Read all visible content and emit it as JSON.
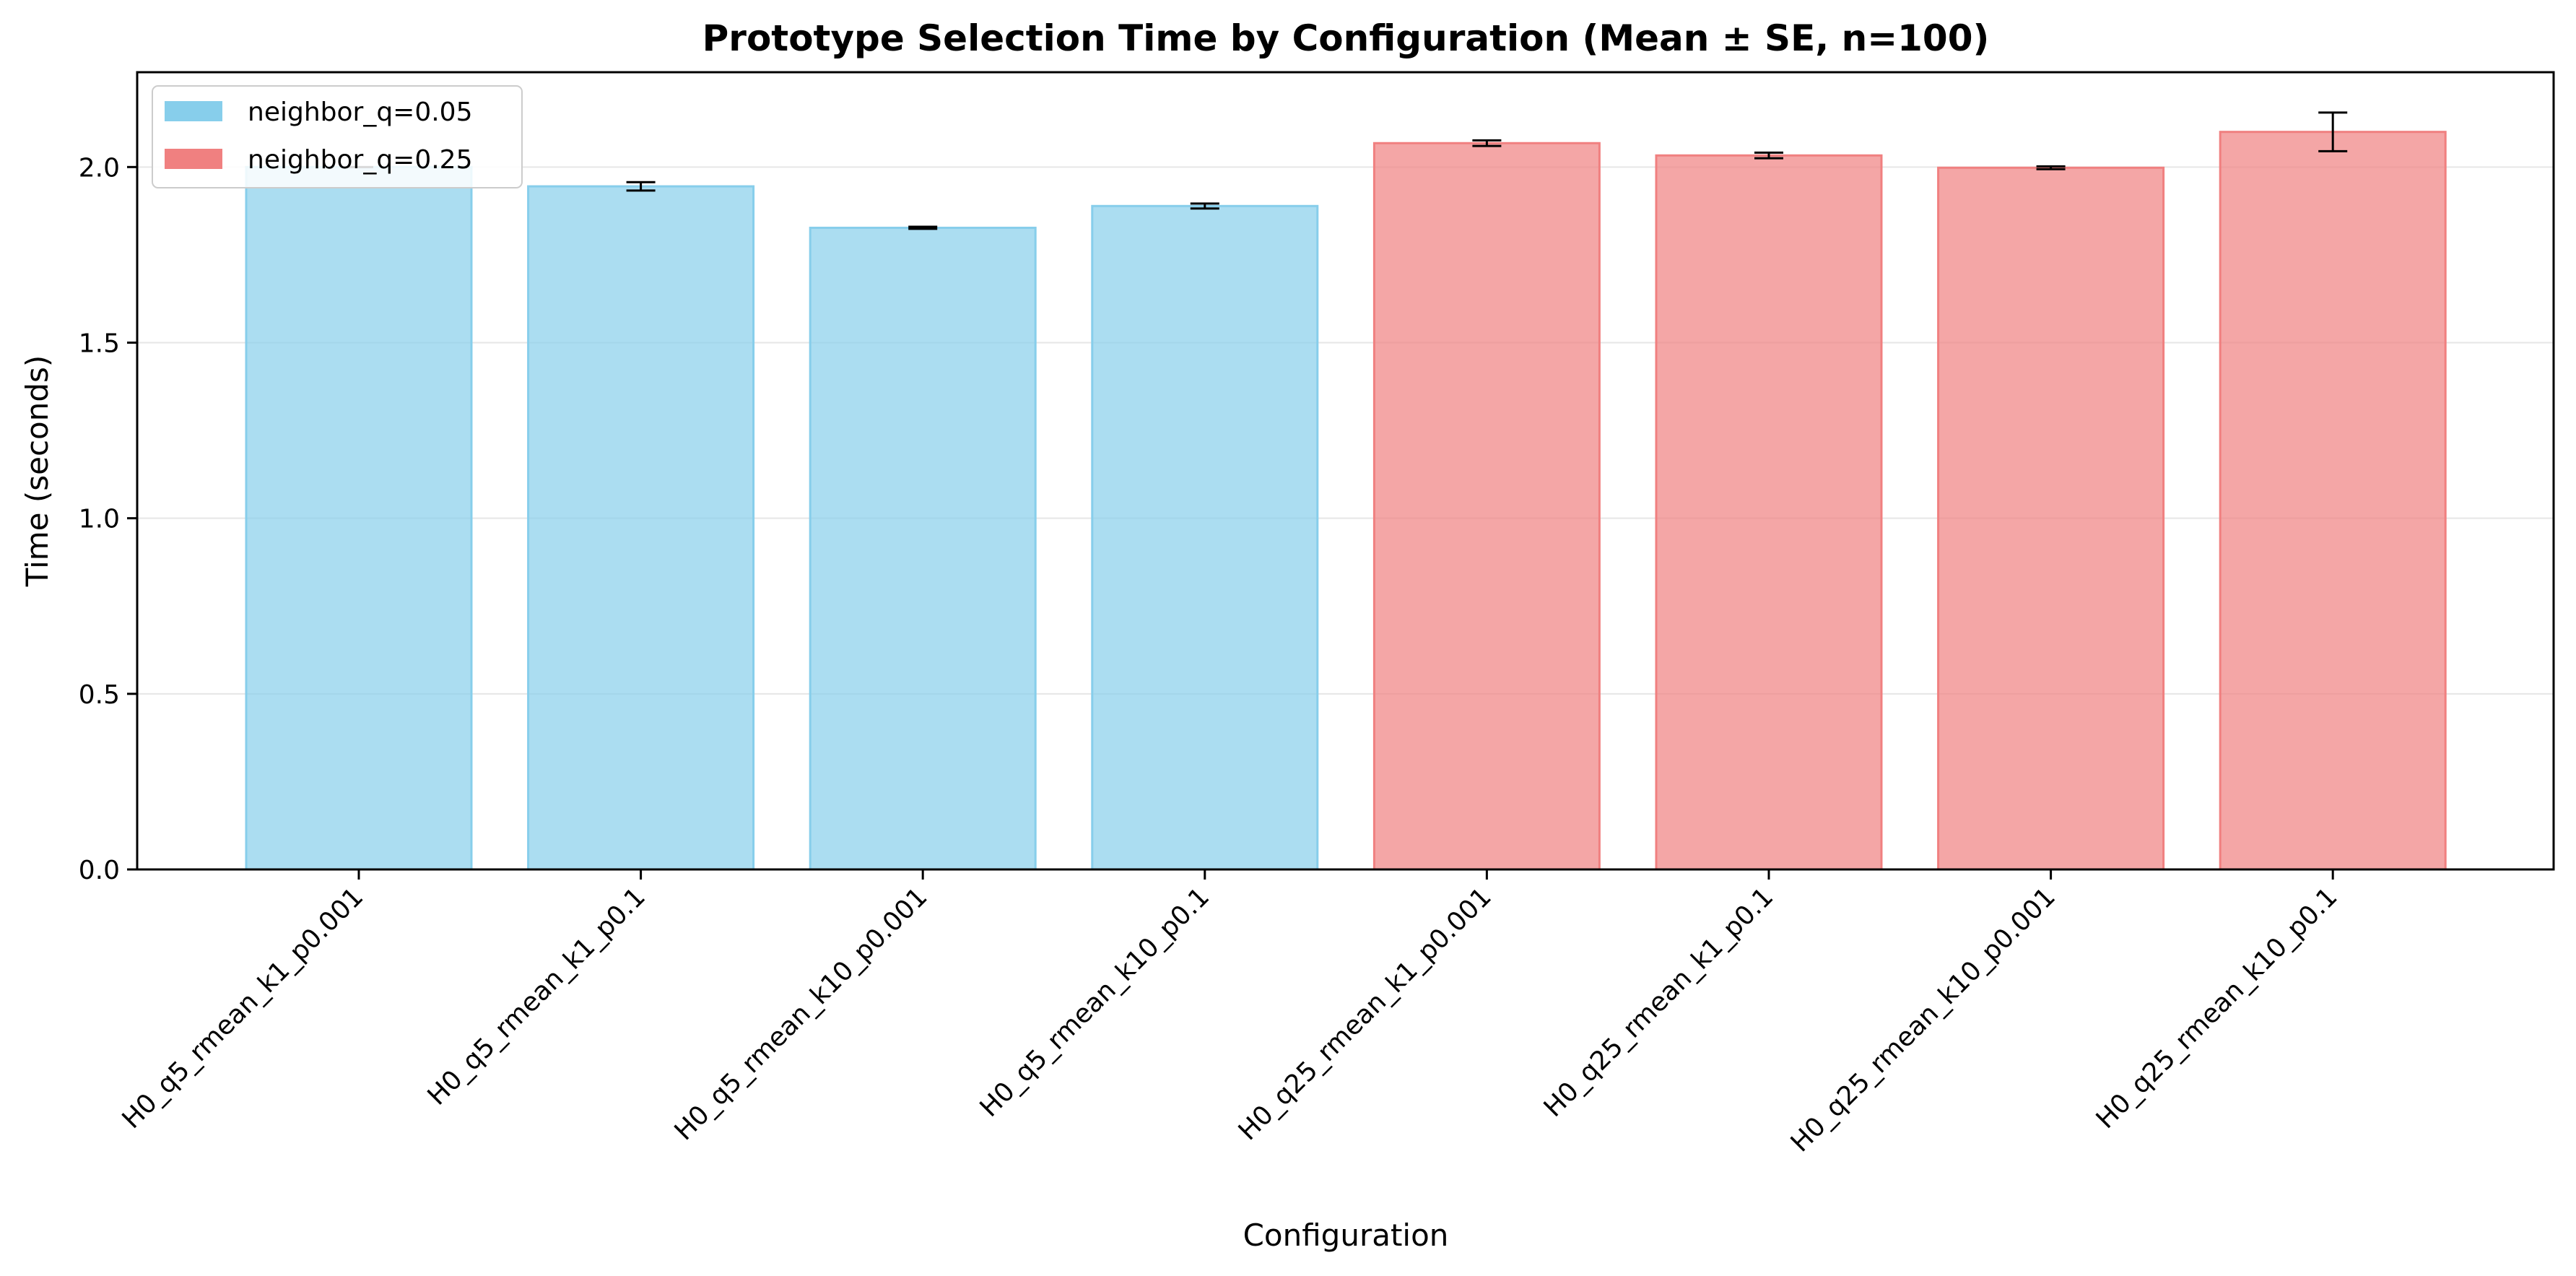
{
  "chart_data": {
    "type": "bar",
    "title": "Prototype Selection Time by Configuration (Mean ± SE, n=100)",
    "xlabel": "Configuration",
    "ylabel": "Time (seconds)",
    "ylim": [
      0,
      2.27
    ],
    "yticks": [
      "0.0",
      "0.5",
      "1.0",
      "1.5",
      "2.0"
    ],
    "grid": "y-axis, light gray",
    "legend_position": "top-left",
    "categories": [
      "H0_q5_rmean_k1_p0.001",
      "H0_q5_rmean_k1_p0.1",
      "H0_q5_rmean_k10_p0.001",
      "H0_q5_rmean_k10_p0.1",
      "H0_q25_rmean_k1_p0.001",
      "H0_q25_rmean_k1_p0.1",
      "H0_q25_rmean_k10_p0.001",
      "H0_q25_rmean_k10_p0.1"
    ],
    "values": [
      2.0,
      1.945,
      1.827,
      1.889,
      2.068,
      2.033,
      1.998,
      2.1
    ],
    "errors": [
      0.0,
      0.012,
      0.003,
      0.007,
      0.008,
      0.008,
      0.004,
      0.055
    ],
    "groups": [
      0,
      0,
      0,
      0,
      1,
      1,
      1,
      1
    ],
    "series": [
      {
        "name": "neighbor_q=0.05",
        "color": "#87CEEB"
      },
      {
        "name": "neighbor_q=0.25",
        "color": "#F08080"
      }
    ]
  }
}
